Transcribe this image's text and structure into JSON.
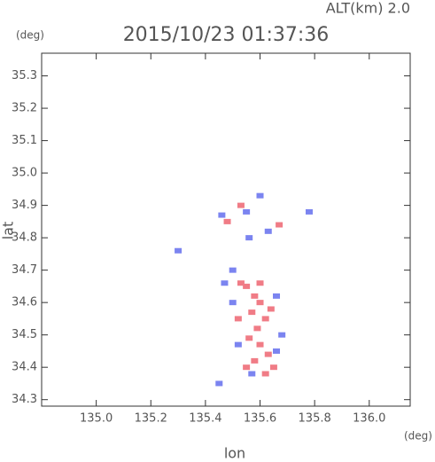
{
  "chart_data": {
    "type": "scatter",
    "title": "2015/10/23 01:37:36",
    "subtitle": "ALT(km) 2.0",
    "y_unit": "(deg)",
    "x_unit": "(deg)",
    "x_label": "lon",
    "y_label": "lat",
    "xlim": [
      134.8,
      136.15
    ],
    "ylim": [
      34.28,
      35.37
    ],
    "xticks": [
      {
        "value": 135,
        "label": "135.0"
      },
      135.2,
      135.4,
      135.6,
      135.8,
      {
        "value": 136,
        "label": "136.0"
      }
    ],
    "yticks": [
      34.3,
      34.4,
      34.5,
      34.6,
      34.7,
      34.8,
      34.9,
      {
        "value": 35,
        "label": "35.0"
      },
      35.1,
      35.2,
      35.3
    ],
    "series": [
      {
        "color": "#f07c86",
        "x": [
          135.55,
          135.58,
          135.6,
          135.57,
          135.62,
          135.59,
          135.56,
          135.6,
          135.63,
          135.58,
          135.55,
          135.65,
          135.62,
          135.53,
          135.6,
          135.48,
          135.67,
          135.53,
          135.64,
          135.52
        ],
        "values": [
          34.65,
          34.62,
          34.6,
          34.57,
          34.55,
          34.52,
          34.49,
          34.47,
          34.44,
          34.42,
          34.4,
          34.4,
          34.38,
          34.66,
          34.66,
          34.85,
          34.84,
          34.9,
          34.58,
          34.55
        ]
      },
      {
        "color": "#7b84f0",
        "x": [
          135.47,
          135.5,
          135.66,
          135.68,
          135.52,
          135.45,
          135.6,
          135.55,
          135.63,
          135.56,
          135.46,
          135.78,
          135.5,
          135.66,
          135.57,
          135.3
        ],
        "values": [
          34.66,
          34.6,
          34.62,
          34.5,
          34.47,
          34.35,
          34.93,
          34.88,
          34.82,
          34.8,
          34.87,
          34.88,
          34.7,
          34.45,
          34.38,
          34.76
        ]
      }
    ]
  }
}
